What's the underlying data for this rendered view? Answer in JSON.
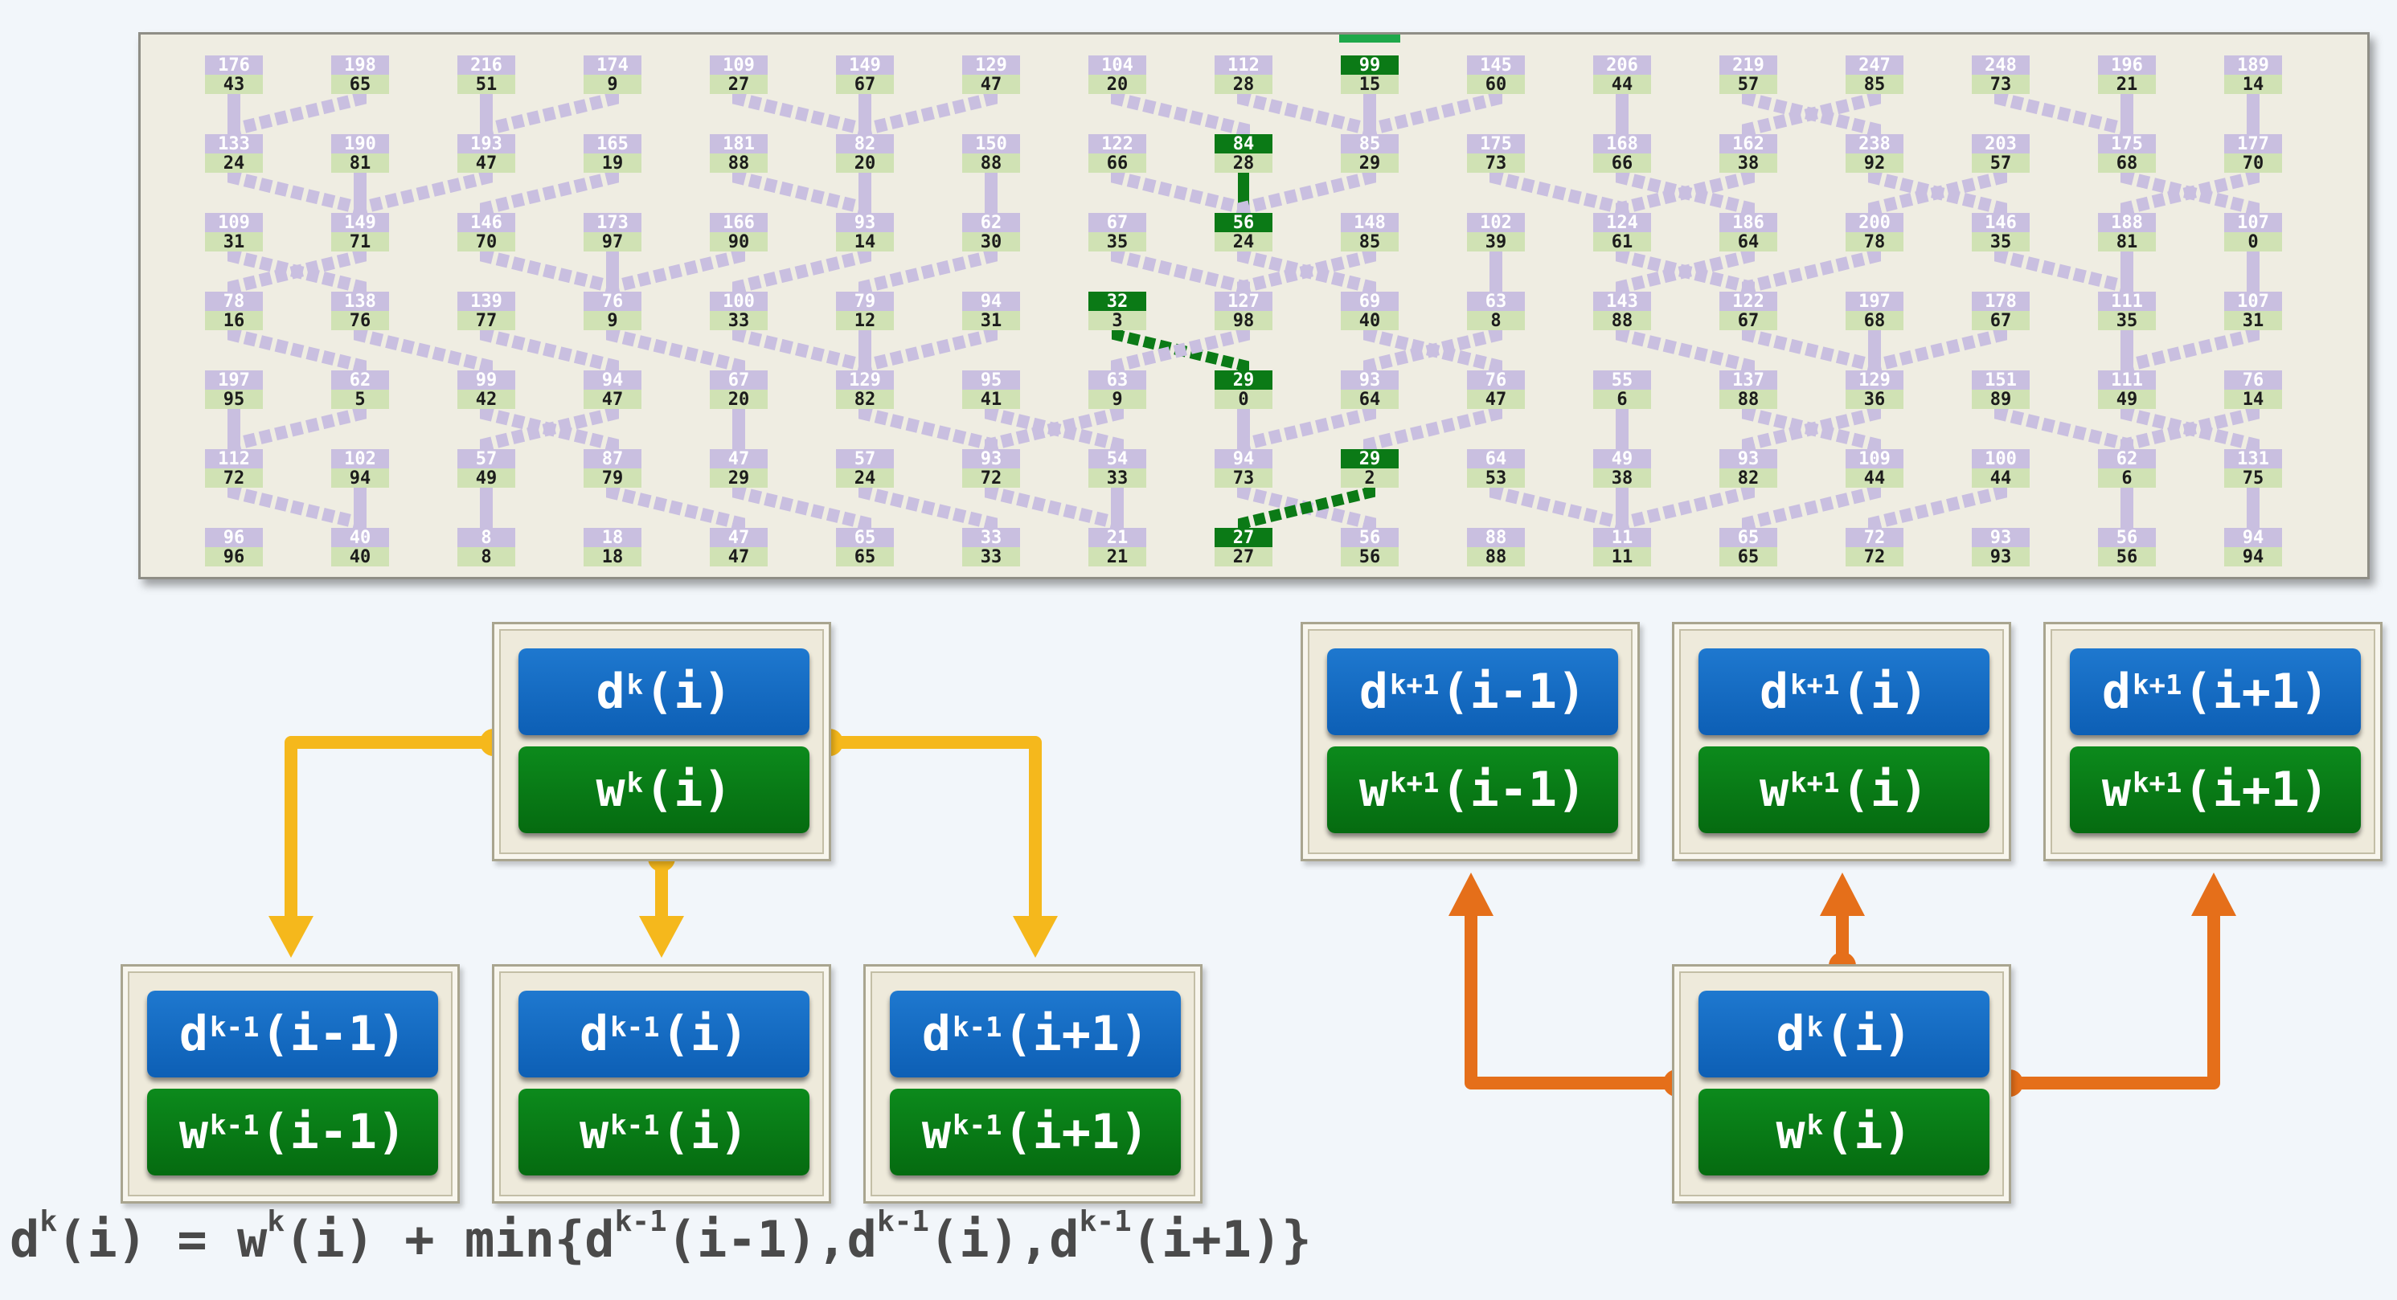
{
  "grid": {
    "d_rows": [
      [
        "176",
        "198",
        "216",
        "174",
        "109",
        "149",
        "129",
        "104",
        "112",
        "99",
        "145",
        "206",
        "219",
        "247",
        "248",
        "196",
        "189"
      ],
      [
        "133",
        "190",
        "193",
        "165",
        "181",
        "82",
        "150",
        "122",
        "84",
        "85",
        "175",
        "168",
        "162",
        "238",
        "203",
        "175",
        "177"
      ],
      [
        "109",
        "149",
        "146",
        "173",
        "166",
        "93",
        "62",
        "67",
        "56",
        "148",
        "102",
        "124",
        "186",
        "200",
        "146",
        "188",
        "107"
      ],
      [
        "78",
        "138",
        "139",
        "76",
        "100",
        "79",
        "94",
        "32",
        "127",
        "69",
        "63",
        "143",
        "122",
        "197",
        "178",
        "111",
        "107"
      ],
      [
        "197",
        "62",
        "99",
        "94",
        "67",
        "129",
        "95",
        "63",
        "29",
        "93",
        "76",
        "55",
        "137",
        "129",
        "151",
        "111",
        "76"
      ],
      [
        "112",
        "102",
        "57",
        "87",
        "47",
        "57",
        "93",
        "54",
        "94",
        "29",
        "64",
        "49",
        "93",
        "109",
        "100",
        "62",
        "131"
      ],
      [
        "96",
        "40",
        "8",
        "18",
        "47",
        "65",
        "33",
        "21",
        "27",
        "56",
        "88",
        "11",
        "65",
        "72",
        "93",
        "56",
        "94"
      ]
    ],
    "w_rows": [
      [
        "43",
        "65",
        "51",
        "9",
        "27",
        "67",
        "47",
        "20",
        "28",
        "15",
        "60",
        "44",
        "57",
        "85",
        "73",
        "21",
        "14"
      ],
      [
        "24",
        "81",
        "47",
        "19",
        "88",
        "20",
        "88",
        "66",
        "28",
        "29",
        "73",
        "66",
        "38",
        "92",
        "57",
        "68",
        "70"
      ],
      [
        "31",
        "71",
        "70",
        "97",
        "90",
        "14",
        "30",
        "35",
        "24",
        "85",
        "39",
        "61",
        "64",
        "78",
        "35",
        "81",
        "0"
      ],
      [
        "16",
        "76",
        "77",
        "9",
        "33",
        "12",
        "31",
        "3",
        "98",
        "40",
        "8",
        "88",
        "67",
        "68",
        "67",
        "35",
        "31"
      ],
      [
        "95",
        "5",
        "42",
        "47",
        "20",
        "82",
        "41",
        "9",
        "0",
        "64",
        "47",
        "6",
        "88",
        "36",
        "89",
        "49",
        "14"
      ],
      [
        "72",
        "94",
        "49",
        "79",
        "29",
        "24",
        "72",
        "33",
        "73",
        "2",
        "53",
        "38",
        "82",
        "44",
        "44",
        "6",
        "75"
      ],
      [
        "96",
        "40",
        "8",
        "18",
        "47",
        "65",
        "33",
        "21",
        "27",
        "56",
        "88",
        "11",
        "65",
        "72",
        "93",
        "56",
        "94"
      ]
    ],
    "parent_offsets": [
      [
        0,
        -1,
        0,
        -1,
        1,
        0,
        -1,
        1,
        1,
        0,
        -1,
        0,
        1,
        -1,
        1,
        0,
        0
      ],
      [
        1,
        0,
        -1,
        -1,
        1,
        0,
        0,
        1,
        0,
        -1,
        1,
        1,
        -1,
        1,
        -1,
        1,
        -1
      ],
      [
        1,
        -1,
        1,
        0,
        -1,
        -1,
        -1,
        1,
        1,
        -1,
        0,
        1,
        -1,
        -1,
        1,
        0,
        0
      ],
      [
        1,
        1,
        1,
        1,
        1,
        0,
        -1,
        1,
        -1,
        1,
        -1,
        1,
        1,
        0,
        -1,
        0,
        -1
      ],
      [
        0,
        -1,
        1,
        -1,
        0,
        1,
        1,
        -1,
        0,
        -1,
        -1,
        0,
        1,
        -1,
        1,
        1,
        -1
      ],
      [
        1,
        0,
        0,
        1,
        1,
        1,
        1,
        0,
        1,
        -1,
        1,
        0,
        -1,
        -1,
        -1,
        0,
        0
      ]
    ],
    "highlight_path": [
      {
        "row": 0,
        "col": 9
      },
      {
        "row": 1,
        "col": 8
      },
      {
        "row": 2,
        "col": 8
      },
      {
        "row": 3,
        "col": 7
      },
      {
        "row": 4,
        "col": 8
      },
      {
        "row": 5,
        "col": 9
      },
      {
        "row": 6,
        "col": 8
      }
    ],
    "colors": {
      "d_label": "#c9bfe0",
      "w_label": "#d0e2b4",
      "connector": "#c9bfe0",
      "path": "#0b7a16",
      "panel": "#efede2"
    }
  },
  "left_diagram": {
    "center": {
      "d_base": "d",
      "d_sup": "k",
      "d_arg": "(i)",
      "w_base": "w",
      "w_sup": "k",
      "w_arg": "(i)"
    },
    "children": [
      {
        "d_base": "d",
        "d_sup": "k-1",
        "d_arg": "(i-1)",
        "w_base": "w",
        "w_sup": "k-1",
        "w_arg": "(i-1)"
      },
      {
        "d_base": "d",
        "d_sup": "k-1",
        "d_arg": "(i)",
        "w_base": "w",
        "w_sup": "k-1",
        "w_arg": "(i)"
      },
      {
        "d_base": "d",
        "d_sup": "k-1",
        "d_arg": "(i+1)",
        "w_base": "w",
        "w_sup": "k-1",
        "w_arg": "(i+1)"
      }
    ],
    "arrow_color": "#f5b81c"
  },
  "right_diagram": {
    "parents": [
      {
        "d_base": "d",
        "d_sup": "k+1",
        "d_arg": "(i-1)",
        "w_base": "w",
        "w_sup": "k+1",
        "w_arg": "(i-1)"
      },
      {
        "d_base": "d",
        "d_sup": "k+1",
        "d_arg": "(i)",
        "w_base": "w",
        "w_sup": "k+1",
        "w_arg": "(i)"
      },
      {
        "d_base": "d",
        "d_sup": "k+1",
        "d_arg": "(i+1)",
        "w_base": "w",
        "w_sup": "k+1",
        "w_arg": "(i+1)"
      }
    ],
    "center": {
      "d_base": "d",
      "d_sup": "k",
      "d_arg": "(i)",
      "w_base": "w",
      "w_sup": "k",
      "w_arg": "(i)"
    },
    "arrow_color": "#e56f1a"
  },
  "formula": {
    "p1": "d",
    "s1": "k",
    "p2": "(i) = w",
    "s2": "k",
    "p3": "(i) + min{d",
    "s3": "k-1",
    "p4": "(i-1),d",
    "s4": "k-1",
    "p5": "(i),d",
    "s5": "k-1",
    "p6": "(i+1)}"
  },
  "colors": {
    "d_pill": "#0d5fb5",
    "w_pill": "#056b10",
    "formula_text": "#4a4a4a",
    "background": "#f2f6fa"
  }
}
